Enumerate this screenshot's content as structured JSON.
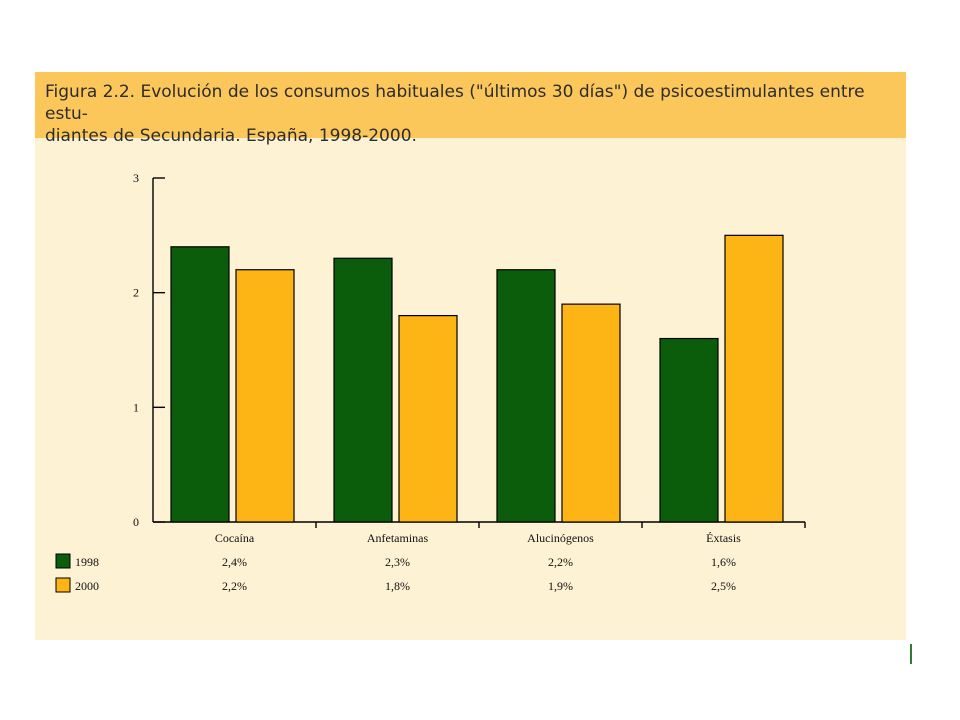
{
  "figure": {
    "title": "Figura 2.2. Evolución de los consumos habituales (\"últimos 30 días\") de psicoestimulantes entre estu-diantes de Secundaria. España, 1998-2000.",
    "title_line1": "Figura 2.2. Evolución de los consumos habituales (\"últimos 30 días\") de psicoestimulantes entre estu-",
    "title_line2": "diantes de Secundaria. España, 1998-2000."
  },
  "colors": {
    "title_band": "#fbc65a",
    "panel_background": "#fdf2d3",
    "series_1998": "#0b5c0b",
    "series_2000": "#fdb515"
  },
  "chart_data": {
    "type": "bar",
    "title": "Figura 2.2. Evolución de los consumos habituales (\"últimos 30 días\") de psicoestimulantes entre estudiantes de Secundaria. España, 1998-2000.",
    "xlabel": "",
    "ylabel": "",
    "categories": [
      "Cocaína",
      "Anfetaminas",
      "Alucinógenos",
      "Éxtasis"
    ],
    "series": [
      {
        "name": "1998",
        "values": [
          2.4,
          2.3,
          2.2,
          1.6
        ],
        "labels": [
          "2,4%",
          "2,3%",
          "2,2%",
          "1,6%"
        ],
        "color": "#0b5c0b"
      },
      {
        "name": "2000",
        "values": [
          2.2,
          1.8,
          1.9,
          2.5
        ],
        "labels": [
          "2,2%",
          "1,8%",
          "1,9%",
          "2,5%"
        ],
        "color": "#fdb515"
      }
    ],
    "ylim": [
      0,
      3
    ],
    "yticks": [
      "0",
      "1",
      "2",
      "3"
    ],
    "grid": false,
    "legend": "data table below the chart, left"
  }
}
